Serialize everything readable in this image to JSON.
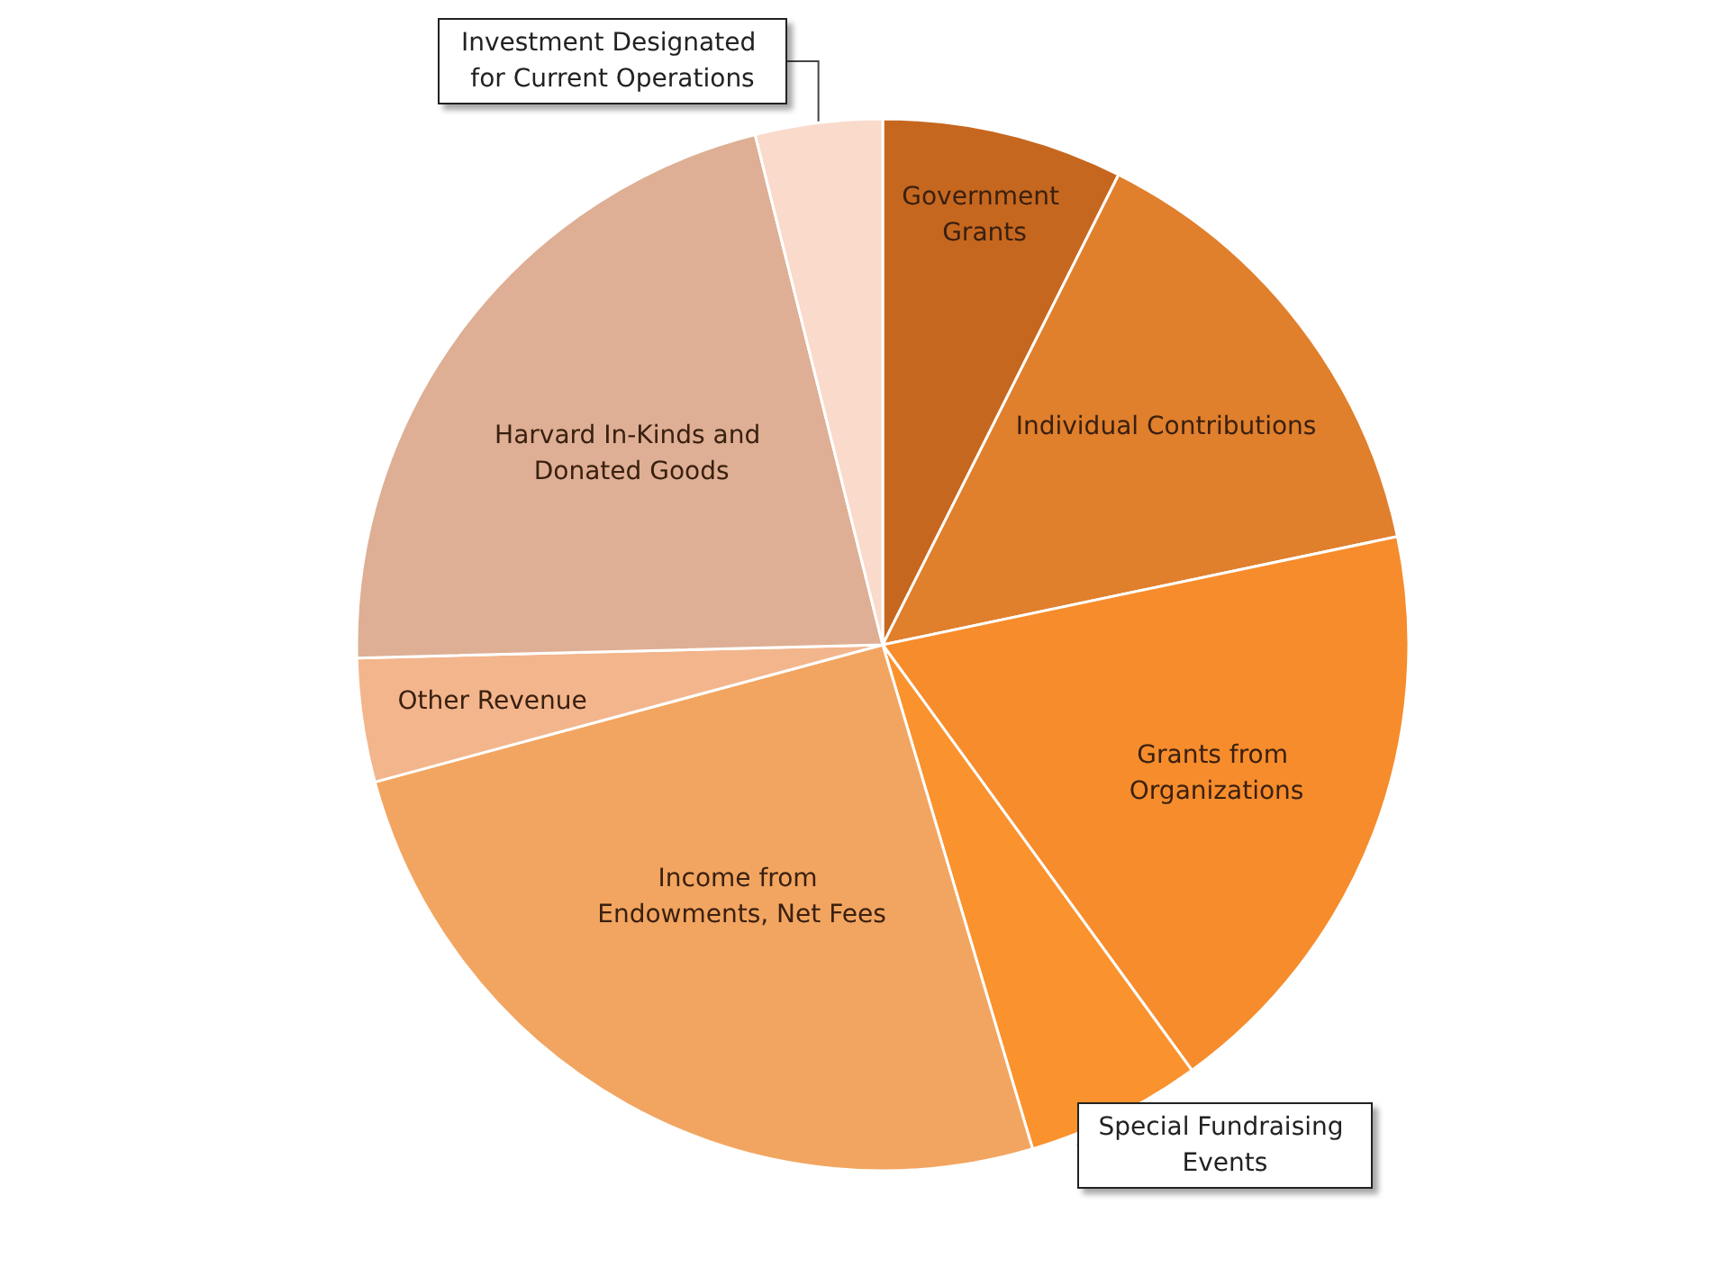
{
  "chart_data": {
    "type": "pie",
    "categories": [
      "Government Grants",
      "Individual Contributions",
      "Grants from Organizations",
      "Special Fundraising Events",
      "Income from Endowments, Net Fees",
      "Other Revenue",
      "Harvard In-Kinds and Donated Goods",
      "Investment Designated for Current Operations"
    ],
    "values": [
      7.4,
      14.3,
      18.3,
      5.4,
      25.4,
      3.8,
      21.5,
      3.9
    ],
    "colors": [
      "#c6671f",
      "#e07f2c",
      "#f68c2c",
      "#fa922e",
      "#f2a560",
      "#f3b58c",
      "#deaf94",
      "#f9dacb"
    ],
    "legend": false
  }
}
